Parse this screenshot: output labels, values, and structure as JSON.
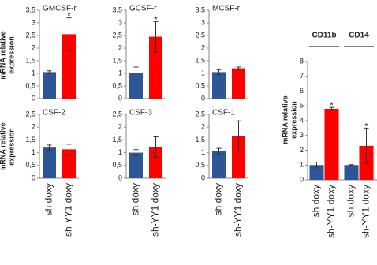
{
  "chart_data": [
    {
      "type": "bar",
      "title": "GMCSF-r",
      "categories": [
        null,
        null
      ],
      "values": [
        1.05,
        2.55
      ],
      "errors": [
        0.05,
        0.65
      ],
      "colors": [
        "#2e5597",
        "#ff0000"
      ],
      "significance": [
        null,
        "*"
      ],
      "ylabel": [
        "mRNA relative",
        "expression"
      ],
      "ylim": [
        0,
        3.5
      ],
      "yticks": [
        0,
        {
          "value": 0.5,
          "label": "0,5"
        },
        1,
        {
          "value": 1.5,
          "label": "1,5"
        },
        2,
        {
          "value": 2.5,
          "label": "2,5"
        },
        3,
        {
          "value": 3.5,
          "label": "3,5"
        }
      ]
    },
    {
      "type": "bar",
      "title": "GCSF-r",
      "categories": [
        null,
        null
      ],
      "values": [
        1.0,
        2.45
      ],
      "errors": [
        0.25,
        0.6
      ],
      "colors": [
        "#2e5597",
        "#ff0000"
      ],
      "significance": [
        null,
        "*"
      ],
      "ylim": [
        0,
        3.5
      ],
      "yticks": [
        0,
        {
          "value": 0.5,
          "label": "0,5"
        },
        1,
        {
          "value": 1.5,
          "label": "1,5"
        },
        2,
        {
          "value": 2.5,
          "label": "2,5"
        },
        3,
        {
          "value": 3.5,
          "label": "3,5"
        }
      ]
    },
    {
      "type": "bar",
      "title": "MCSF-r",
      "categories": [
        null,
        null
      ],
      "values": [
        1.05,
        1.2
      ],
      "errors": [
        0.1,
        0.05
      ],
      "colors": [
        "#2e5597",
        "#ff0000"
      ],
      "ylim": [
        0,
        3.5
      ],
      "yticks": [
        0,
        {
          "value": 0.5,
          "label": "0,5"
        },
        1,
        {
          "value": 1.5,
          "label": "1,5"
        },
        2,
        {
          "value": 2.5,
          "label": "2,5"
        },
        3,
        {
          "value": 3.5,
          "label": "3,5"
        }
      ]
    },
    {
      "type": "bar",
      "title": "CSF-2",
      "categories": [
        "sh doxy",
        "sh-YY1 doxy"
      ],
      "values": [
        1.2,
        1.13
      ],
      "errors": [
        0.1,
        0.2
      ],
      "colors": [
        "#2e5597",
        "#ff0000"
      ],
      "ylabel": [
        "mRNA relative",
        "expression"
      ],
      "ylim": [
        0,
        2.5
      ],
      "yticks": [
        0,
        {
          "value": 0.5,
          "label": "0,5"
        },
        1,
        {
          "value": 1.5,
          "label": "1,5"
        },
        2,
        {
          "value": 2.5,
          "label": "2,5"
        }
      ]
    },
    {
      "type": "bar",
      "title": "CSF-3",
      "categories": [
        "sh doxy",
        "sh-YY1 doxy"
      ],
      "values": [
        1.0,
        1.22
      ],
      "errors": [
        0.12,
        0.4
      ],
      "colors": [
        "#2e5597",
        "#ff0000"
      ],
      "ylim": [
        0,
        2.5
      ],
      "yticks": [
        0,
        {
          "value": 0.5,
          "label": "0,5"
        },
        1,
        {
          "value": 1.5,
          "label": "1,5"
        },
        2,
        {
          "value": 2.5,
          "label": "2,5"
        }
      ]
    },
    {
      "type": "bar",
      "title": "CSF-1",
      "categories": [
        "sh doxy",
        "sh-YY1 doxy"
      ],
      "values": [
        1.05,
        1.65
      ],
      "errors": [
        0.12,
        0.6
      ],
      "colors": [
        "#2e5597",
        "#ff0000"
      ],
      "ylim": [
        0,
        2.5
      ],
      "yticks": [
        0,
        {
          "value": 0.5,
          "label": "0,5"
        },
        1,
        {
          "value": 1.5,
          "label": "1,5"
        },
        2,
        {
          "value": 2.5,
          "label": "2,5"
        }
      ]
    },
    {
      "type": "grouped_bar",
      "groups": [
        "CD11b",
        "CD14"
      ],
      "series": [
        {
          "name": "sh doxy",
          "color": "#2e5597",
          "values": [
            1.0,
            1.0
          ],
          "errors": [
            0.2,
            0.03
          ]
        },
        {
          "name": "sh-YY1 doxy",
          "color": "#ff0000",
          "values": [
            4.8,
            2.3
          ],
          "errors": [
            0.1,
            1.2
          ],
          "significance": [
            "*",
            "*"
          ]
        }
      ],
      "ylabel": [
        "mRNA relative",
        "expression"
      ],
      "ylim": [
        0,
        8
      ],
      "yticks": [
        0,
        1,
        2,
        3,
        4,
        5,
        6,
        7,
        8
      ]
    }
  ]
}
